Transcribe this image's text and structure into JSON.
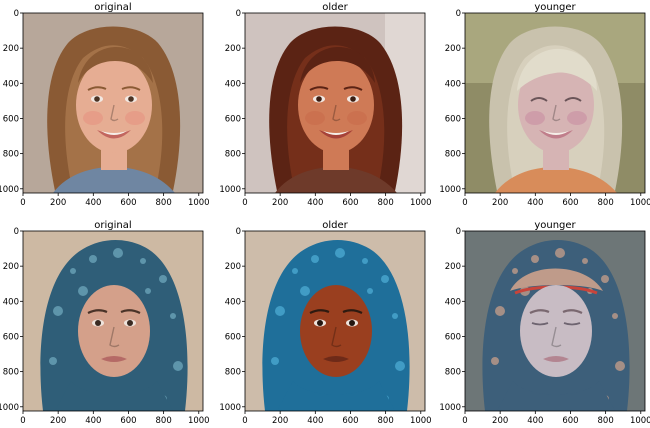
{
  "figure": {
    "panels": [
      {
        "title": "original",
        "subject": "young girl, long light-brown wavy hair, smiling",
        "colors": {
          "background": "#b7a79a",
          "hair": "#8a5a34",
          "hair_light": "#b9865a",
          "skin": "#e6ad93",
          "cheek": "#e5907f",
          "lips": "#c2665f",
          "eyes": "#4b3324",
          "shirt": "#6f86a2"
        }
      },
      {
        "title": "older",
        "subject": "adult woman, auburn hair, wide smile",
        "colors": {
          "background": "#cfc3bf",
          "hair": "#5b2314",
          "hair_light": "#8a3a1f",
          "skin": "#cf7a56",
          "cheek": "#c96a4b",
          "lips": "#a64239",
          "eyes": "#3b1d12",
          "shirt": "#6e3a2a"
        }
      },
      {
        "title": "younger",
        "subject": "small child, pale blond hair, laughing with eyes closed",
        "colors": {
          "background": "#8f8c66",
          "hair": "#c9c2ad",
          "hair_light": "#e1dccb",
          "skin": "#d6b4b4",
          "cheek": "#c98aa0",
          "lips": "#c07e8b",
          "eyes": "#6a5458",
          "shirt": "#d88c5a"
        }
      },
      {
        "title": "original",
        "subject": "woman wearing a blue patterned headscarf",
        "colors": {
          "background": "#cdb9a3",
          "scarf": "#2f5e78",
          "scarf_light": "#6aa2b8",
          "skin": "#d4a08a",
          "lips": "#b56a66",
          "eyes": "#3a2a22",
          "brows": "#4a3328"
        }
      },
      {
        "title": "older",
        "subject": "woman with dark reddish-brown skin in a bright blue headscarf",
        "colors": {
          "background": "#cdbcaa",
          "scarf": "#1f6f9a",
          "scarf_light": "#4aa8cf",
          "skin": "#9a3f1f",
          "lips": "#6e2a18",
          "eyes": "#241610",
          "brows": "#2e1a10"
        }
      },
      {
        "title": "younger",
        "subject": "pale woman, eyes closed, multicolored patterned headwrap",
        "colors": {
          "background": "#6d7677",
          "scarf": "#3d5f7a",
          "scarf_light": "#bf9b8a",
          "skin": "#c8bcc4",
          "lips": "#b38591",
          "eyes": "#6e6470",
          "brows": "#7a6870"
        }
      }
    ],
    "x_ticks": [
      0,
      200,
      400,
      600,
      800,
      1000
    ],
    "y_ticks": [
      0,
      200,
      400,
      600,
      800,
      1000
    ],
    "image_extent": [
      0,
      1024
    ]
  }
}
